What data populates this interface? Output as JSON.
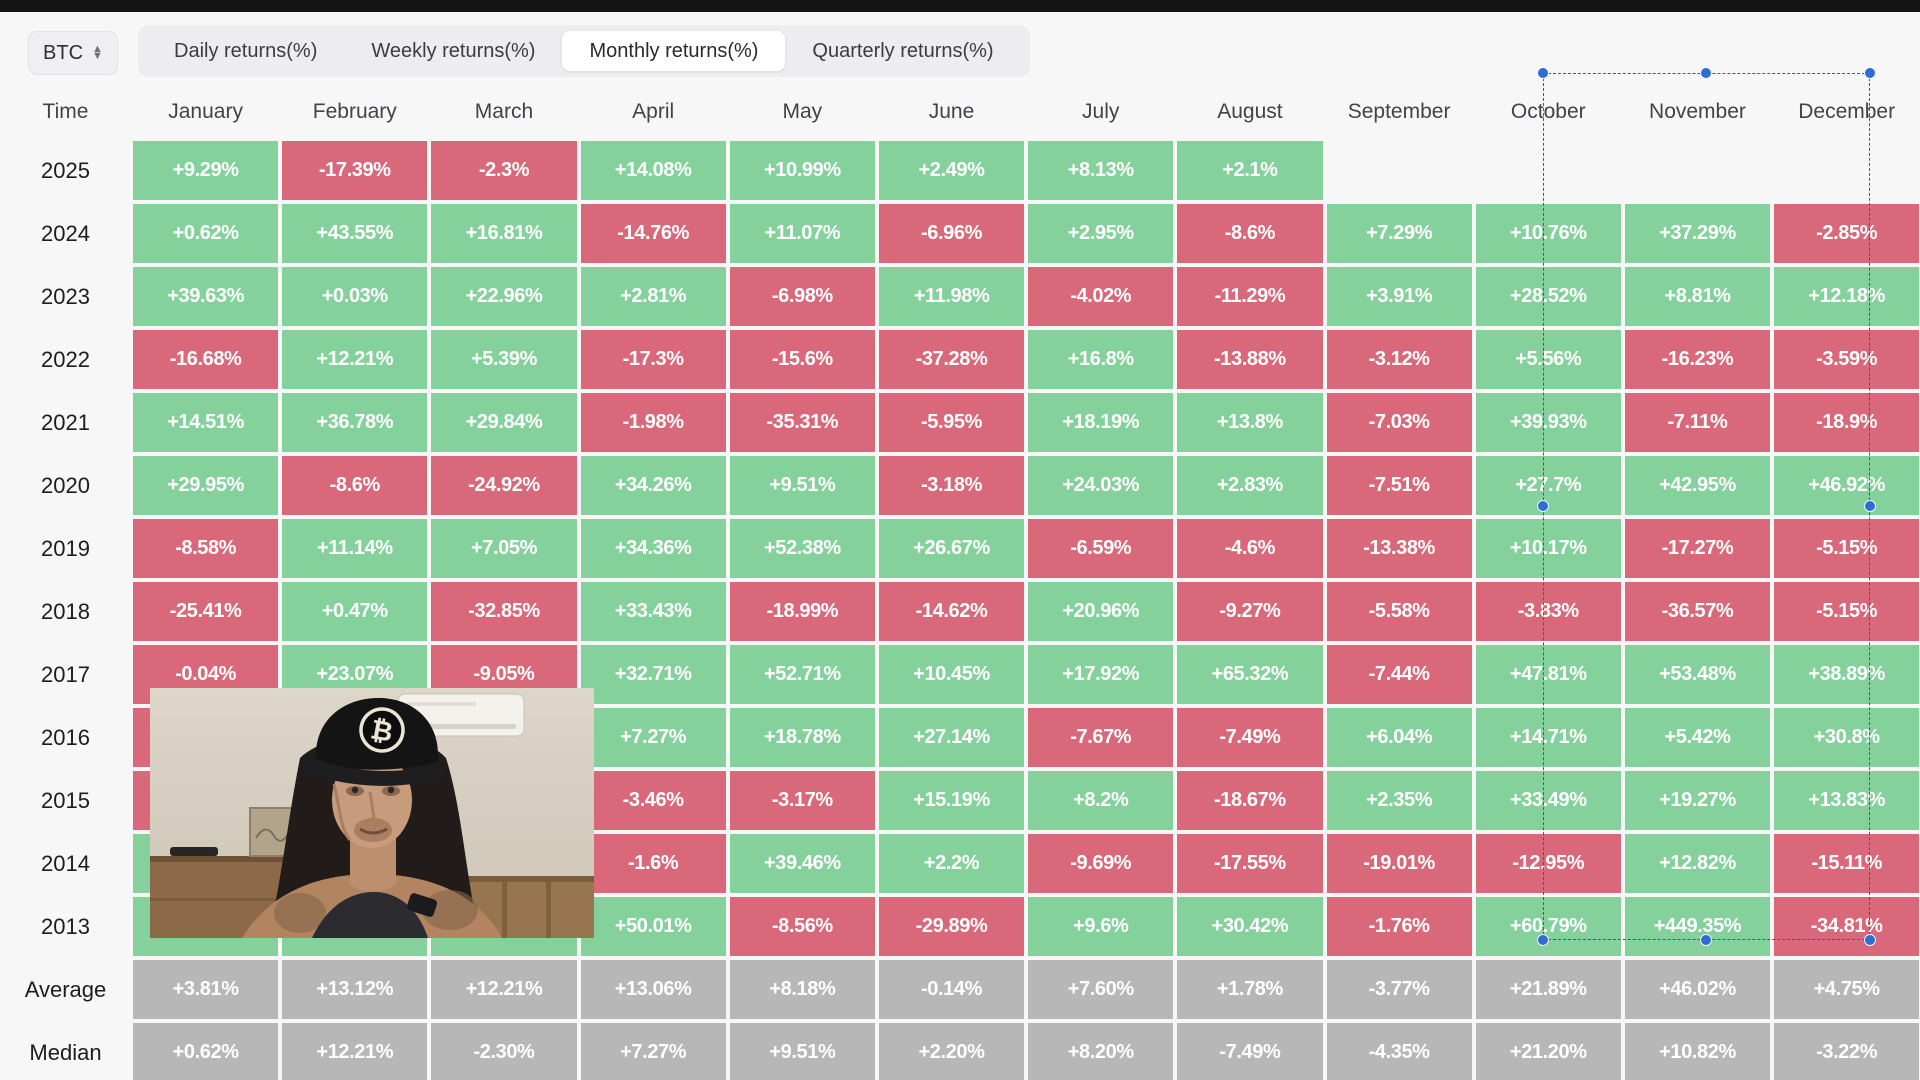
{
  "toolbar": {
    "symbol": {
      "label": "BTC"
    },
    "tabs": [
      {
        "label": "Daily returns(%)",
        "active": false
      },
      {
        "label": "Weekly returns(%)",
        "active": false
      },
      {
        "label": "Monthly returns(%)",
        "active": true
      },
      {
        "label": "Quarterly returns(%)",
        "active": false
      }
    ]
  },
  "colors": {
    "green": "#84d19c",
    "red": "#d8687a",
    "gray": "#b7b7b8",
    "cell_text": "#ffffff",
    "selection_handle": "#2e6ed4",
    "active_tab_bg": "#ffffff"
  },
  "table": {
    "corner_label": "Time",
    "months": [
      "January",
      "February",
      "March",
      "April",
      "May",
      "June",
      "July",
      "August",
      "September",
      "October",
      "November",
      "December"
    ],
    "rows": [
      {
        "label": "2025",
        "type": "year",
        "cells": [
          [
            "+9.29%",
            "green"
          ],
          [
            "-17.39%",
            "red"
          ],
          [
            "-2.3%",
            "red"
          ],
          [
            "+14.08%",
            "green"
          ],
          [
            "+10.99%",
            "green"
          ],
          [
            "+2.49%",
            "green"
          ],
          [
            "+8.13%",
            "green"
          ],
          [
            "+2.1%",
            "green"
          ],
          null,
          null,
          null,
          null
        ]
      },
      {
        "label": "2024",
        "type": "year",
        "cells": [
          [
            "+0.62%",
            "green"
          ],
          [
            "+43.55%",
            "green"
          ],
          [
            "+16.81%",
            "green"
          ],
          [
            "-14.76%",
            "red"
          ],
          [
            "+11.07%",
            "green"
          ],
          [
            "-6.96%",
            "red"
          ],
          [
            "+2.95%",
            "green"
          ],
          [
            "-8.6%",
            "red"
          ],
          [
            "+7.29%",
            "green"
          ],
          [
            "+10.76%",
            "green"
          ],
          [
            "+37.29%",
            "green"
          ],
          [
            "-2.85%",
            "red"
          ]
        ]
      },
      {
        "label": "2023",
        "type": "year",
        "cells": [
          [
            "+39.63%",
            "green"
          ],
          [
            "+0.03%",
            "green"
          ],
          [
            "+22.96%",
            "green"
          ],
          [
            "+2.81%",
            "green"
          ],
          [
            "-6.98%",
            "red"
          ],
          [
            "+11.98%",
            "green"
          ],
          [
            "-4.02%",
            "red"
          ],
          [
            "-11.29%",
            "red"
          ],
          [
            "+3.91%",
            "green"
          ],
          [
            "+28.52%",
            "green"
          ],
          [
            "+8.81%",
            "green"
          ],
          [
            "+12.18%",
            "green"
          ]
        ]
      },
      {
        "label": "2022",
        "type": "year",
        "cells": [
          [
            "-16.68%",
            "red"
          ],
          [
            "+12.21%",
            "green"
          ],
          [
            "+5.39%",
            "green"
          ],
          [
            "-17.3%",
            "red"
          ],
          [
            "-15.6%",
            "red"
          ],
          [
            "-37.28%",
            "red"
          ],
          [
            "+16.8%",
            "green"
          ],
          [
            "-13.88%",
            "red"
          ],
          [
            "-3.12%",
            "red"
          ],
          [
            "+5.56%",
            "green"
          ],
          [
            "-16.23%",
            "red"
          ],
          [
            "-3.59%",
            "red"
          ]
        ]
      },
      {
        "label": "2021",
        "type": "year",
        "cells": [
          [
            "+14.51%",
            "green"
          ],
          [
            "+36.78%",
            "green"
          ],
          [
            "+29.84%",
            "green"
          ],
          [
            "-1.98%",
            "red"
          ],
          [
            "-35.31%",
            "red"
          ],
          [
            "-5.95%",
            "red"
          ],
          [
            "+18.19%",
            "green"
          ],
          [
            "+13.8%",
            "green"
          ],
          [
            "-7.03%",
            "red"
          ],
          [
            "+39.93%",
            "green"
          ],
          [
            "-7.11%",
            "red"
          ],
          [
            "-18.9%",
            "red"
          ]
        ]
      },
      {
        "label": "2020",
        "type": "year",
        "cells": [
          [
            "+29.95%",
            "green"
          ],
          [
            "-8.6%",
            "red"
          ],
          [
            "-24.92%",
            "red"
          ],
          [
            "+34.26%",
            "green"
          ],
          [
            "+9.51%",
            "green"
          ],
          [
            "-3.18%",
            "red"
          ],
          [
            "+24.03%",
            "green"
          ],
          [
            "+2.83%",
            "green"
          ],
          [
            "-7.51%",
            "red"
          ],
          [
            "+27.7%",
            "green"
          ],
          [
            "+42.95%",
            "green"
          ],
          [
            "+46.92%",
            "green"
          ]
        ]
      },
      {
        "label": "2019",
        "type": "year",
        "cells": [
          [
            "-8.58%",
            "red"
          ],
          [
            "+11.14%",
            "green"
          ],
          [
            "+7.05%",
            "green"
          ],
          [
            "+34.36%",
            "green"
          ],
          [
            "+52.38%",
            "green"
          ],
          [
            "+26.67%",
            "green"
          ],
          [
            "-6.59%",
            "red"
          ],
          [
            "-4.6%",
            "red"
          ],
          [
            "-13.38%",
            "red"
          ],
          [
            "+10.17%",
            "green"
          ],
          [
            "-17.27%",
            "red"
          ],
          [
            "-5.15%",
            "red"
          ]
        ]
      },
      {
        "label": "2018",
        "type": "year",
        "cells": [
          [
            "-25.41%",
            "red"
          ],
          [
            "+0.47%",
            "green"
          ],
          [
            "-32.85%",
            "red"
          ],
          [
            "+33.43%",
            "green"
          ],
          [
            "-18.99%",
            "red"
          ],
          [
            "-14.62%",
            "red"
          ],
          [
            "+20.96%",
            "green"
          ],
          [
            "-9.27%",
            "red"
          ],
          [
            "-5.58%",
            "red"
          ],
          [
            "-3.83%",
            "red"
          ],
          [
            "-36.57%",
            "red"
          ],
          [
            "-5.15%",
            "red"
          ]
        ]
      },
      {
        "label": "2017",
        "type": "year",
        "cells": [
          [
            "-0.04%",
            "red"
          ],
          [
            "+23.07%",
            "green"
          ],
          [
            "-9.05%",
            "red"
          ],
          [
            "+32.71%",
            "green"
          ],
          [
            "+52.71%",
            "green"
          ],
          [
            "+10.45%",
            "green"
          ],
          [
            "+17.92%",
            "green"
          ],
          [
            "+65.32%",
            "green"
          ],
          [
            "-7.44%",
            "red"
          ],
          [
            "+47.81%",
            "green"
          ],
          [
            "+53.48%",
            "green"
          ],
          [
            "+38.89%",
            "green"
          ]
        ]
      },
      {
        "label": "2016",
        "type": "year",
        "cells": [
          [
            "",
            "red"
          ],
          null,
          null,
          [
            "+7.27%",
            "green"
          ],
          [
            "+18.78%",
            "green"
          ],
          [
            "+27.14%",
            "green"
          ],
          [
            "-7.67%",
            "red"
          ],
          [
            "-7.49%",
            "red"
          ],
          [
            "+6.04%",
            "green"
          ],
          [
            "+14.71%",
            "green"
          ],
          [
            "+5.42%",
            "green"
          ],
          [
            "+30.8%",
            "green"
          ]
        ]
      },
      {
        "label": "2015",
        "type": "year",
        "cells": [
          [
            "",
            "red"
          ],
          null,
          null,
          [
            "-3.46%",
            "red"
          ],
          [
            "-3.17%",
            "red"
          ],
          [
            "+15.19%",
            "green"
          ],
          [
            "+8.2%",
            "green"
          ],
          [
            "-18.67%",
            "red"
          ],
          [
            "+2.35%",
            "green"
          ],
          [
            "+33.49%",
            "green"
          ],
          [
            "+19.27%",
            "green"
          ],
          [
            "+13.83%",
            "green"
          ]
        ]
      },
      {
        "label": "2014",
        "type": "year",
        "cells": [
          [
            "",
            "green"
          ],
          null,
          null,
          [
            "-1.6%",
            "red"
          ],
          [
            "+39.46%",
            "green"
          ],
          [
            "+2.2%",
            "green"
          ],
          [
            "-9.69%",
            "red"
          ],
          [
            "-17.55%",
            "red"
          ],
          [
            "-19.01%",
            "red"
          ],
          [
            "-12.95%",
            "red"
          ],
          [
            "+12.82%",
            "green"
          ],
          [
            "-15.11%",
            "red"
          ]
        ]
      },
      {
        "label": "2013",
        "type": "year",
        "cells": [
          [
            "",
            "green"
          ],
          [
            "",
            "green"
          ],
          [
            "",
            "green"
          ],
          [
            "+50.01%",
            "green"
          ],
          [
            "-8.56%",
            "red"
          ],
          [
            "-29.89%",
            "red"
          ],
          [
            "+9.6%",
            "green"
          ],
          [
            "+30.42%",
            "green"
          ],
          [
            "-1.76%",
            "red"
          ],
          [
            "+60.79%",
            "green"
          ],
          [
            "+449.35%",
            "green"
          ],
          [
            "-34.81%",
            "red"
          ]
        ]
      },
      {
        "label": "Average",
        "type": "summary",
        "cells": [
          [
            "+3.81%",
            "gray"
          ],
          [
            "+13.12%",
            "gray"
          ],
          [
            "+12.21%",
            "gray"
          ],
          [
            "+13.06%",
            "gray"
          ],
          [
            "+8.18%",
            "gray"
          ],
          [
            "-0.14%",
            "gray"
          ],
          [
            "+7.60%",
            "gray"
          ],
          [
            "+1.78%",
            "gray"
          ],
          [
            "-3.77%",
            "gray"
          ],
          [
            "+21.89%",
            "gray"
          ],
          [
            "+46.02%",
            "gray"
          ],
          [
            "+4.75%",
            "gray"
          ]
        ]
      },
      {
        "label": "Median",
        "type": "summary",
        "cells": [
          [
            "+0.62%",
            "gray"
          ],
          [
            "+12.21%",
            "gray"
          ],
          [
            "-2.30%",
            "gray"
          ],
          [
            "+7.27%",
            "gray"
          ],
          [
            "+9.51%",
            "gray"
          ],
          [
            "+2.20%",
            "gray"
          ],
          [
            "+8.20%",
            "gray"
          ],
          [
            "-7.49%",
            "gray"
          ],
          [
            "-4.35%",
            "gray"
          ],
          [
            "+21.20%",
            "gray"
          ],
          [
            "+10.82%",
            "gray"
          ],
          [
            "-3.22%",
            "gray"
          ]
        ]
      }
    ]
  },
  "video_overlay": {
    "type": "webcam-video",
    "subject": "speaker wearing black cap with Bitcoin logo"
  }
}
